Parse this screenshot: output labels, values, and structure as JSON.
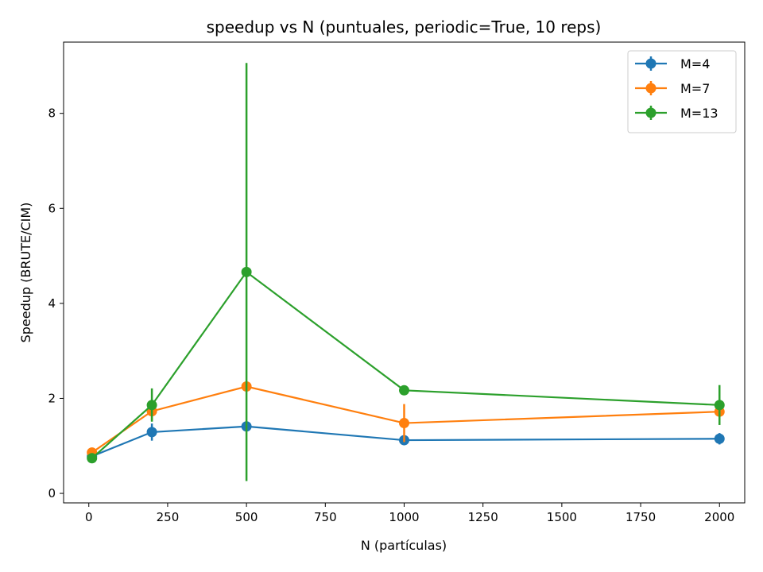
{
  "chart_data": {
    "type": "line",
    "title": "speedup vs N (puntuales, periodic=True, 10 reps)",
    "xlabel": "N (partículas)",
    "ylabel": "Speedup (BRUTE/CIM)",
    "xlim": [
      -80,
      2080
    ],
    "ylim": [
      -0.2,
      9.5
    ],
    "xticks": [
      0,
      250,
      500,
      750,
      1000,
      1250,
      1500,
      1750,
      2000
    ],
    "yticks": [
      0,
      2,
      4,
      6,
      8
    ],
    "x": [
      10,
      200,
      500,
      1000,
      2000
    ],
    "grid": false,
    "legend_position": "top-right",
    "series": [
      {
        "name": "M=4",
        "color": "#1f77b4",
        "values": [
          0.78,
          1.29,
          1.41,
          1.12,
          1.15
        ],
        "errors": [
          0.05,
          0.18,
          0.08,
          0.05,
          0.12
        ]
      },
      {
        "name": "M=7",
        "color": "#ff7f0e",
        "values": [
          0.86,
          1.73,
          2.25,
          1.48,
          1.72
        ],
        "errors": [
          0.05,
          0.2,
          0.1,
          0.4,
          0.1
        ]
      },
      {
        "name": "M=13",
        "color": "#2ca02c",
        "values": [
          0.74,
          1.86,
          4.66,
          2.17,
          1.86
        ],
        "errors": [
          0.05,
          0.35,
          4.4,
          0.05,
          0.42
        ]
      }
    ]
  }
}
